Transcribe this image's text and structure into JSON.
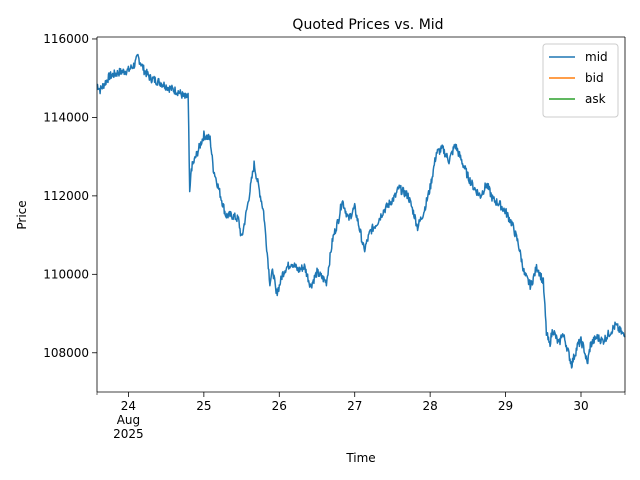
{
  "chart_data": {
    "type": "line",
    "title": "Quoted Prices vs. Mid",
    "xlabel": "Time",
    "ylabel": "Price",
    "xlim": [
      "2025-08-23T14:00",
      "2025-08-30T14:00"
    ],
    "ylim": [
      107000,
      116050
    ],
    "grid": false,
    "legend_position": "top-right",
    "x_ticks": [
      {
        "t": "2025-08-24T00:00",
        "lines": [
          "24",
          "Aug",
          "2025"
        ]
      },
      {
        "t": "2025-08-25T00:00",
        "lines": [
          "25"
        ]
      },
      {
        "t": "2025-08-26T00:00",
        "lines": [
          "26"
        ]
      },
      {
        "t": "2025-08-27T00:00",
        "lines": [
          "27"
        ]
      },
      {
        "t": "2025-08-28T00:00",
        "lines": [
          "28"
        ]
      },
      {
        "t": "2025-08-29T00:00",
        "lines": [
          "29"
        ]
      },
      {
        "t": "2025-08-30T00:00",
        "lines": [
          "30"
        ]
      }
    ],
    "y_ticks": [
      {
        "v": 108000,
        "label": "108000"
      },
      {
        "v": 110000,
        "label": "110000"
      },
      {
        "v": 112000,
        "label": "112000"
      },
      {
        "v": 114000,
        "label": "114000"
      },
      {
        "v": 116000,
        "label": "116000"
      }
    ],
    "series": [
      {
        "name": "mid",
        "color": "#1f77b4",
        "x": [
          "2025-08-23T14:00",
          "2025-08-23T15:00",
          "2025-08-23T18:00",
          "2025-08-23T21:00",
          "2025-08-24T00:00",
          "2025-08-24T02:00",
          "2025-08-24T03:00",
          "2025-08-24T05:00",
          "2025-08-24T07:00",
          "2025-08-24T10:00",
          "2025-08-24T13:00",
          "2025-08-24T16:00",
          "2025-08-24T18:00",
          "2025-08-24T19:00",
          "2025-08-24T19:30",
          "2025-08-24T20:00",
          "2025-08-24T21:00",
          "2025-08-25T00:00",
          "2025-08-25T02:00",
          "2025-08-25T03:00",
          "2025-08-25T04:00",
          "2025-08-25T06:00",
          "2025-08-25T07:00",
          "2025-08-25T09:00",
          "2025-08-25T11:00",
          "2025-08-25T12:00",
          "2025-08-25T14:00",
          "2025-08-25T16:00",
          "2025-08-25T17:00",
          "2025-08-25T19:00",
          "2025-08-25T21:00",
          "2025-08-25T22:00",
          "2025-08-25T23:00",
          "2025-08-26T00:00",
          "2025-08-26T01:00",
          "2025-08-26T02:00",
          "2025-08-26T04:00",
          "2025-08-26T06:00",
          "2025-08-26T08:00",
          "2025-08-26T10:00",
          "2025-08-26T12:00",
          "2025-08-26T15:00",
          "2025-08-26T17:00",
          "2025-08-26T19:00",
          "2025-08-26T20:00",
          "2025-08-26T22:00",
          "2025-08-27T00:00",
          "2025-08-27T02:00",
          "2025-08-27T03:00",
          "2025-08-27T05:00",
          "2025-08-27T07:00",
          "2025-08-27T09:00",
          "2025-08-27T11:00",
          "2025-08-27T13:00",
          "2025-08-27T14:00",
          "2025-08-27T17:00",
          "2025-08-27T19:00",
          "2025-08-27T20:00",
          "2025-08-27T22:00",
          "2025-08-28T00:00",
          "2025-08-28T02:00",
          "2025-08-28T04:00",
          "2025-08-28T06:00",
          "2025-08-28T08:00",
          "2025-08-28T10:00",
          "2025-08-28T12:00",
          "2025-08-28T14:00",
          "2025-08-28T16:00",
          "2025-08-28T18:00",
          "2025-08-28T20:00",
          "2025-08-28T22:00",
          "2025-08-29T00:00",
          "2025-08-29T02:00",
          "2025-08-29T04:00",
          "2025-08-29T06:00",
          "2025-08-29T08:00",
          "2025-08-29T10:00",
          "2025-08-29T12:00",
          "2025-08-29T13:00",
          "2025-08-29T14:00",
          "2025-08-29T15:00",
          "2025-08-29T16:00",
          "2025-08-29T17:00",
          "2025-08-29T18:00",
          "2025-08-29T19:00",
          "2025-08-29T20:00",
          "2025-08-29T21:00",
          "2025-08-29T23:00",
          "2025-08-30T00:00",
          "2025-08-30T01:00",
          "2025-08-30T02:00",
          "2025-08-30T03:00",
          "2025-08-30T05:00",
          "2025-08-30T07:00",
          "2025-08-30T09:00",
          "2025-08-30T11:00",
          "2025-08-30T13:00",
          "2025-08-30T14:00"
        ],
        "y": [
          114850,
          114700,
          115050,
          115150,
          115200,
          115350,
          115550,
          115200,
          115000,
          114900,
          114750,
          114650,
          114500,
          114550,
          112000,
          112700,
          112900,
          113550,
          113450,
          112700,
          112400,
          111800,
          111500,
          111500,
          111400,
          110900,
          111800,
          112800,
          112400,
          111600,
          109800,
          110100,
          109500,
          109700,
          110000,
          110150,
          110300,
          110100,
          110200,
          109700,
          110050,
          109800,
          110900,
          111450,
          111900,
          111400,
          111700,
          111000,
          110600,
          111100,
          111300,
          111600,
          111800,
          112000,
          112200,
          112000,
          111500,
          111200,
          111600,
          112200,
          113100,
          113200,
          112900,
          113300,
          112900,
          112500,
          112200,
          112000,
          112300,
          111900,
          111800,
          111600,
          111300,
          110800,
          110000,
          109700,
          110200,
          109800,
          108500,
          108200,
          108600,
          108400,
          108200,
          108500,
          108300,
          108000,
          107700,
          108200,
          108300,
          108100,
          107700,
          108200,
          108400,
          108300,
          108500,
          108700,
          108500,
          108400
        ]
      },
      {
        "name": "bid",
        "color": "#ff7f0e",
        "x": [],
        "y": []
      },
      {
        "name": "ask",
        "color": "#2ca02c",
        "x": [],
        "y": []
      }
    ]
  }
}
